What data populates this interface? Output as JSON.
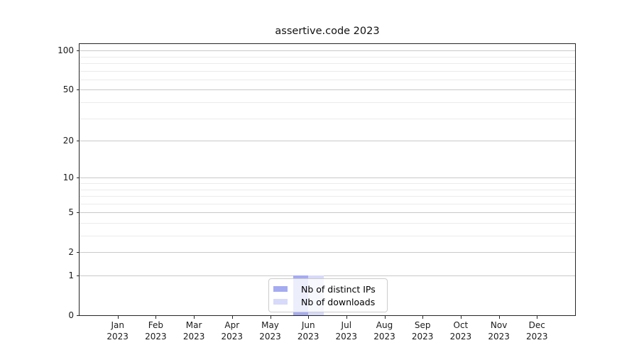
{
  "title": "assertive.code 2023",
  "colors": {
    "distinct_ips": "#a5abf1",
    "downloads": "#d7daf8",
    "grid_major": "#c9c9c9",
    "grid_minor": "#ebebeb",
    "spine": "#262626"
  },
  "chart_data": {
    "type": "bar",
    "title": "assertive.code 2023",
    "months": [
      "Jan",
      "Feb",
      "Mar",
      "Apr",
      "May",
      "Jun",
      "Jul",
      "Aug",
      "Sep",
      "Oct",
      "Nov",
      "Dec"
    ],
    "year": "2023",
    "series": [
      {
        "name": "Nb of distinct IPs",
        "color": "#a5abf1",
        "values": [
          0,
          0,
          0,
          0,
          0,
          1,
          0,
          0,
          0,
          0,
          0,
          0
        ]
      },
      {
        "name": "Nb of downloads",
        "color": "#d7daf8",
        "values": [
          0,
          0,
          0,
          0,
          0,
          1,
          0,
          0,
          0,
          0,
          0,
          0
        ]
      }
    ],
    "y_scale": "log1p",
    "ylim": [
      0,
      112
    ],
    "y_major_ticks": [
      0,
      1,
      2,
      5,
      10,
      20,
      50,
      100
    ],
    "y_minor_ticks": [
      3,
      4,
      6,
      7,
      8,
      9,
      30,
      40,
      60,
      70,
      80,
      90
    ],
    "grid": true,
    "legend_position": "lower center"
  }
}
